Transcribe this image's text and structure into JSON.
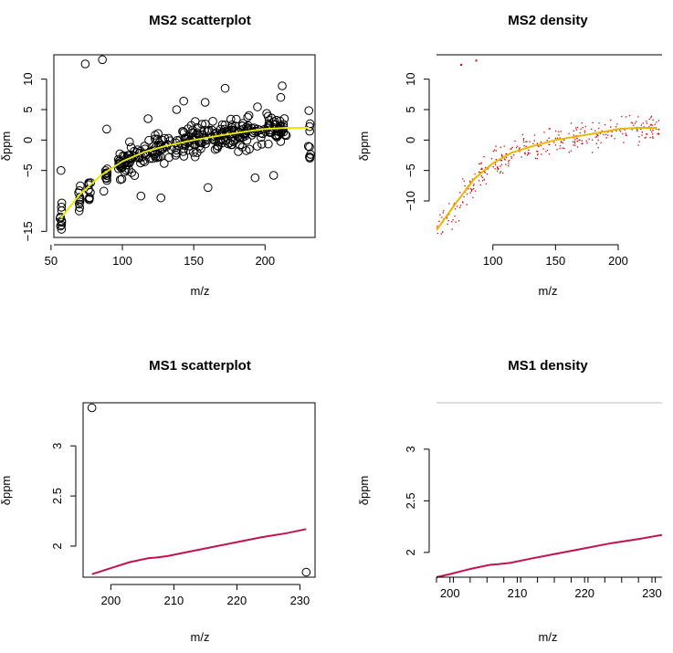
{
  "chart_data": [
    {
      "type": "scatter",
      "title": "MS2 scatterplot",
      "xlabel": "m/z",
      "ylabel": "δppm",
      "xlim": [
        52,
        235
      ],
      "ylim": [
        -16,
        14
      ],
      "xticks": [
        50,
        100,
        150,
        200
      ],
      "yticks": [
        -15,
        -5,
        0,
        5,
        10
      ],
      "grid": false,
      "trend_color": "#e8e800",
      "trend": {
        "x": [
          57,
          70,
          85,
          100,
          115,
          130,
          150,
          170,
          190,
          200,
          215,
          231
        ],
        "y": [
          -12.8,
          -9,
          -5.8,
          -3.5,
          -2,
          -1,
          0,
          0.8,
          1.5,
          1.8,
          2.0,
          2.0
        ]
      },
      "clusters": [
        {
          "x": 57,
          "y_min": -15,
          "y_max": -10
        },
        {
          "x": 70,
          "y_min": -12,
          "y_max": -7
        },
        {
          "x": 77,
          "y_min": -10,
          "y_max": -7
        },
        {
          "x": 89,
          "y_min": -7,
          "y_max": -4.5
        },
        {
          "x": 231,
          "y_min": -3,
          "y_max": 5
        }
      ],
      "outliers": {
        "x": [
          74,
          86,
          57,
          89,
          87,
          113,
          127,
          160,
          193,
          206,
          211,
          212,
          172,
          158,
          138,
          143,
          118,
          105
        ],
        "y": [
          12.5,
          13.2,
          -5,
          1.8,
          -8.4,
          -9.2,
          -9.5,
          -7.8,
          -6.2,
          -5.8,
          7.0,
          8.9,
          8.5,
          6.2,
          5.0,
          6.4,
          3.5,
          -0.3
        ]
      }
    },
    {
      "type": "scatter",
      "title": "MS2 density",
      "xlabel": "m/z",
      "ylabel": "δppm",
      "xlim": [
        55,
        235
      ],
      "ylim": [
        -16,
        14
      ],
      "xticks": [
        100,
        150,
        200
      ],
      "yticks": [
        -10,
        -5,
        0,
        5,
        10
      ],
      "grid": false,
      "trend_color": "#e8b800",
      "point_color": "#d40000",
      "trend": {
        "x": [
          55,
          70,
          85,
          100,
          115,
          130,
          150,
          170,
          190,
          200,
          215,
          231
        ],
        "y": [
          -14.8,
          -10.5,
          -6.4,
          -3.8,
          -2.1,
          -1.1,
          0,
          0.7,
          1.4,
          1.8,
          2.0,
          2.0
        ]
      }
    },
    {
      "type": "scatter",
      "title": "MS1 scatterplot",
      "xlabel": "m/z",
      "ylabel": "δppm",
      "xlim": [
        195.6,
        232.4
      ],
      "ylim": [
        1.69,
        3.43
      ],
      "xticks": [
        200,
        210,
        220,
        230
      ],
      "yticks": [
        2.0,
        2.5,
        3.0
      ],
      "grid": false,
      "line_color": "#c0144c",
      "points": {
        "x": [
          197,
          231
        ],
        "y": [
          3.38,
          1.74
        ]
      },
      "trend": {
        "x": [
          197,
          200,
          203,
          206,
          207,
          209,
          212,
          216,
          220,
          224,
          228,
          231
        ],
        "y": [
          1.72,
          1.78,
          1.84,
          1.88,
          1.885,
          1.9,
          1.94,
          1.99,
          2.04,
          2.09,
          2.13,
          2.17
        ]
      }
    },
    {
      "type": "line",
      "title": "MS1 density",
      "xlabel": "m/z",
      "ylabel": "δppm",
      "xlim": [
        198,
        231.5
      ],
      "ylim": [
        1.76,
        3.45
      ],
      "xticks": [
        200,
        210,
        220,
        230
      ],
      "yticks": [
        2.0,
        2.5,
        3.0
      ],
      "grid": false,
      "line_color": "#c0144c",
      "trend": {
        "x": [
          198,
          200,
          203,
          206,
          207,
          209,
          212,
          216,
          220,
          224,
          228,
          231.5
        ],
        "y": [
          1.76,
          1.79,
          1.84,
          1.88,
          1.885,
          1.9,
          1.94,
          1.99,
          2.04,
          2.09,
          2.13,
          2.17
        ]
      }
    }
  ]
}
